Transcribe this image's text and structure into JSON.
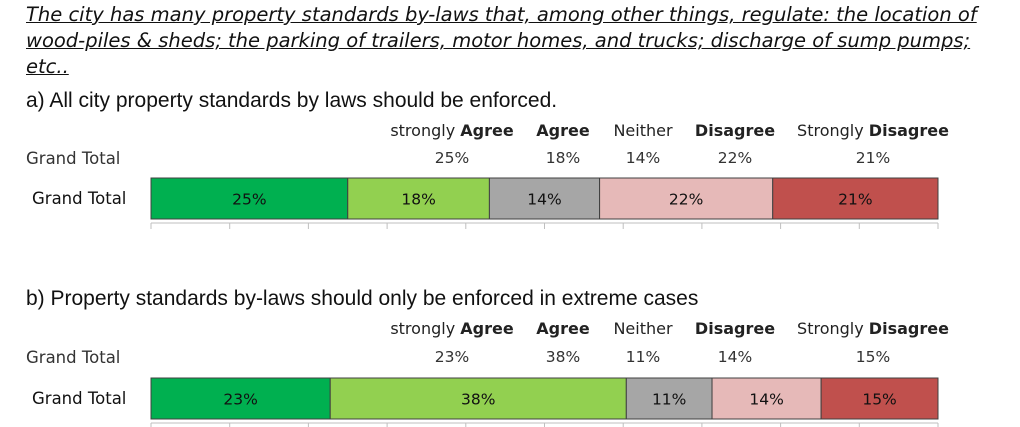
{
  "intro_text": "The city has many property standards by-laws that, among other things, regulate: the location of wood-piles & sheds; the parking of trailers, motor homes, and trucks; discharge of sump pumps; etc..",
  "colors": {
    "strongly_agree": "#00b050",
    "agree": "#92d050",
    "neither": "#a6a6a6",
    "disagree": "#e6b9b8",
    "strongly_disagree": "#c0504d"
  },
  "chart_data": [
    {
      "type": "bar",
      "orientation": "horizontal-stacked",
      "title": "a)  All city property standards by laws should be enforced.",
      "categories": [
        "Grand Total"
      ],
      "header_label": "Grand Total",
      "series": [
        {
          "name": "strongly Agree",
          "name_prefix": "strongly ",
          "name_bold": "Agree",
          "values": [
            25
          ],
          "label": "25%"
        },
        {
          "name": "Agree",
          "name_prefix": "",
          "name_bold": "Agree",
          "values": [
            18
          ],
          "label": "18%"
        },
        {
          "name": "Neither",
          "name_prefix": "Neither",
          "name_bold": "",
          "values": [
            14
          ],
          "label": "14%"
        },
        {
          "name": "Disagree",
          "name_prefix": "",
          "name_bold": "Disagree",
          "values": [
            22
          ],
          "label": "22%"
        },
        {
          "name": "Strongly Disagree",
          "name_prefix": "Strongly ",
          "name_bold": "Disagree",
          "values": [
            21
          ],
          "label": "21%"
        }
      ],
      "xlim": [
        0,
        100
      ]
    },
    {
      "type": "bar",
      "orientation": "horizontal-stacked",
      "title": "b)  Property standards by-laws should only be enforced in extreme cases",
      "categories": [
        "Grand Total"
      ],
      "header_label": "Grand Total",
      "series": [
        {
          "name": "strongly Agree",
          "name_prefix": "strongly ",
          "name_bold": "Agree",
          "values": [
            23
          ],
          "label": "23%"
        },
        {
          "name": "Agree",
          "name_prefix": "",
          "name_bold": "Agree",
          "values": [
            38
          ],
          "label": "38%"
        },
        {
          "name": "Neither",
          "name_prefix": "Neither",
          "name_bold": "",
          "values": [
            11
          ],
          "label": "11%"
        },
        {
          "name": "Disagree",
          "name_prefix": "",
          "name_bold": "Disagree",
          "values": [
            14
          ],
          "label": "14%"
        },
        {
          "name": "Strongly Disagree",
          "name_prefix": "Strongly ",
          "name_bold": "Disagree",
          "values": [
            15
          ],
          "label": "15%"
        }
      ],
      "xlim": [
        0,
        100
      ]
    }
  ]
}
